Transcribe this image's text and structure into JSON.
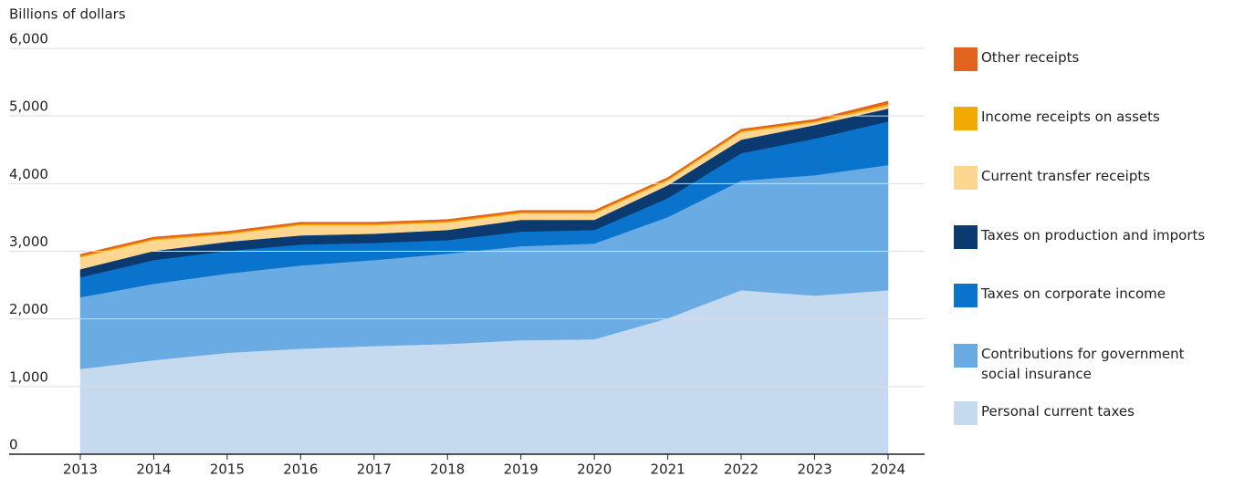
{
  "chart_data": {
    "type": "stacked-area",
    "y_label": "Billions of dollars",
    "categories": [
      "2013",
      "2014",
      "2015",
      "2016",
      "2017",
      "2018",
      "2019",
      "2020",
      "2021",
      "2022",
      "2023",
      "2024"
    ],
    "ylim": [
      0,
      6000
    ],
    "yticks": [
      0,
      {
        "value": 1000,
        "label": "1,000"
      },
      {
        "value": 2000,
        "label": "2,000"
      },
      {
        "value": 3000,
        "label": "3,000"
      },
      {
        "value": 4000,
        "label": "4,000"
      },
      {
        "value": 5000,
        "label": "5,000"
      },
      {
        "value": 6000,
        "label": "6,000"
      }
    ],
    "grid": true,
    "series": [
      {
        "name": "Personal current taxes",
        "color": "#c5d9ef",
        "values": [
          1260,
          1390,
          1500,
          1560,
          1600,
          1630,
          1685,
          1700,
          2010,
          2425,
          2345,
          2425
        ]
      },
      {
        "name": "Contributions for government social insurance",
        "color": "#6aabe3",
        "values": [
          1060,
          1130,
          1170,
          1230,
          1270,
          1335,
          1390,
          1415,
          1495,
          1620,
          1780,
          1850
        ]
      },
      {
        "name": "Taxes on corporate income",
        "color": "#0a74cc",
        "values": [
          295,
          350,
          335,
          310,
          255,
          200,
          215,
          200,
          280,
          405,
          540,
          645
        ]
      },
      {
        "name": "Taxes on production and imports",
        "color": "#0a3a70",
        "values": [
          120,
          135,
          135,
          135,
          135,
          150,
          175,
          150,
          190,
          200,
          200,
          190
        ]
      },
      {
        "name": "Current transfer receipts",
        "color": "#fdd690",
        "values": [
          175,
          160,
          110,
          150,
          125,
          110,
          95,
          95,
          70,
          110,
          40,
          40
        ]
      },
      {
        "name": "Income receipts on assets",
        "color": "#f2a900",
        "values": [
          20,
          20,
          20,
          20,
          20,
          20,
          20,
          20,
          20,
          20,
          20,
          30
        ]
      },
      {
        "name": "Other receipts",
        "color": "#e0641e",
        "values": [
          25,
          25,
          25,
          25,
          25,
          25,
          25,
          25,
          25,
          25,
          25,
          40
        ]
      }
    ]
  }
}
